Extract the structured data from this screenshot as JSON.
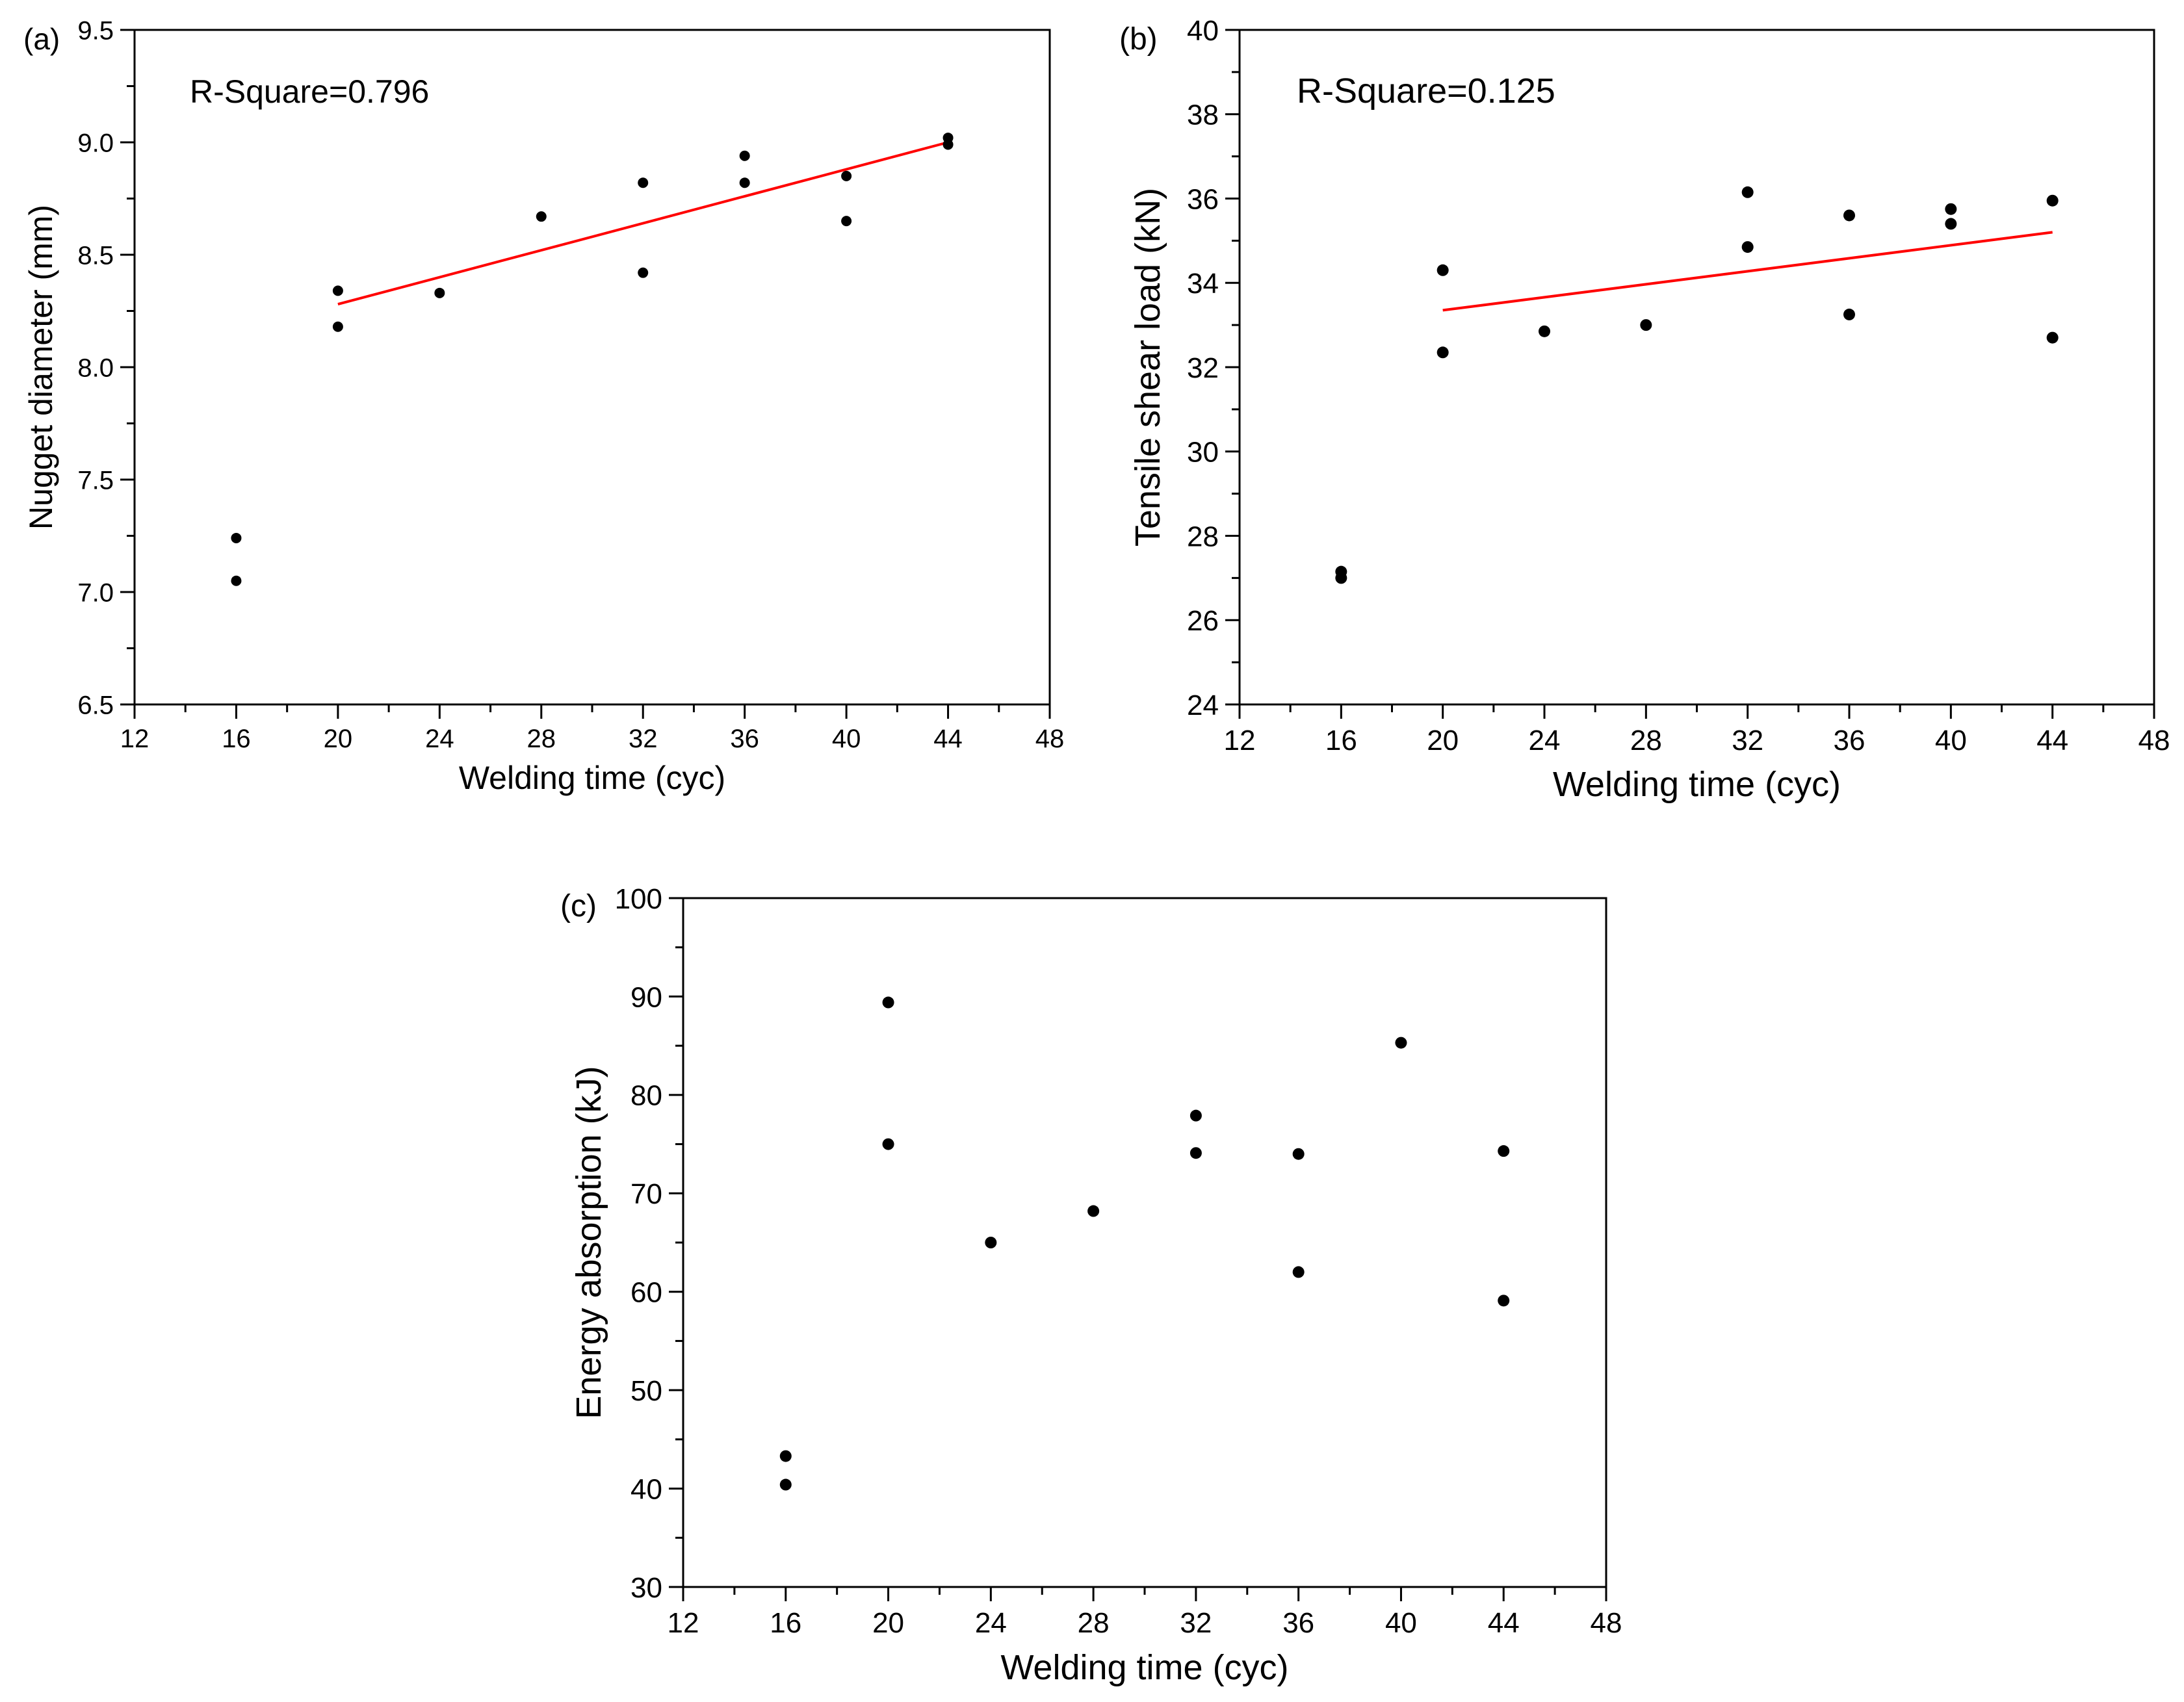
{
  "chart_data": [
    {
      "panel_label": "(a)",
      "type": "scatter",
      "xlabel": "Welding time (cyc)",
      "ylabel": "Nugget diameter (mm)",
      "xlim": [
        12,
        48
      ],
      "ylim": [
        6.5,
        9.5
      ],
      "xticks": [
        "12",
        "16",
        "20",
        "24",
        "28",
        "32",
        "36",
        "40",
        "44",
        "48"
      ],
      "yticks": [
        "6.5",
        "7.0",
        "7.5",
        "8.0",
        "8.5",
        "9.0",
        "9.5"
      ],
      "annotation": "R-Square=0.796",
      "points": [
        {
          "x": 16,
          "y": 7.24
        },
        {
          "x": 16,
          "y": 7.05
        },
        {
          "x": 20,
          "y": 8.34
        },
        {
          "x": 20,
          "y": 8.18
        },
        {
          "x": 24,
          "y": 8.33
        },
        {
          "x": 28,
          "y": 8.67
        },
        {
          "x": 32,
          "y": 8.82
        },
        {
          "x": 32,
          "y": 8.42
        },
        {
          "x": 36,
          "y": 8.94
        },
        {
          "x": 36,
          "y": 8.82
        },
        {
          "x": 40,
          "y": 8.85
        },
        {
          "x": 40,
          "y": 8.65
        },
        {
          "x": 44,
          "y": 9.02
        },
        {
          "x": 44,
          "y": 8.99
        }
      ],
      "fit_line": {
        "color": "#ff0000",
        "x": [
          20,
          44
        ],
        "y": [
          8.28,
          9.0
        ]
      }
    },
    {
      "panel_label": "(b)",
      "type": "scatter",
      "xlabel": "Welding time (cyc)",
      "ylabel": "Tensile shear load (kN)",
      "xlim": [
        12,
        48
      ],
      "ylim": [
        24,
        40
      ],
      "xticks": [
        "12",
        "16",
        "20",
        "24",
        "28",
        "32",
        "36",
        "40",
        "44",
        "48"
      ],
      "yticks": [
        "24",
        "26",
        "28",
        "30",
        "32",
        "34",
        "36",
        "38",
        "40"
      ],
      "annotation": "R-Square=0.125",
      "points": [
        {
          "x": 16,
          "y": 27.15
        },
        {
          "x": 16,
          "y": 27.0
        },
        {
          "x": 20,
          "y": 34.3
        },
        {
          "x": 20,
          "y": 32.35
        },
        {
          "x": 24,
          "y": 32.85
        },
        {
          "x": 28,
          "y": 33.0
        },
        {
          "x": 32,
          "y": 36.15
        },
        {
          "x": 32,
          "y": 34.85
        },
        {
          "x": 36,
          "y": 35.6
        },
        {
          "x": 36,
          "y": 33.25
        },
        {
          "x": 40,
          "y": 35.75
        },
        {
          "x": 40,
          "y": 35.4
        },
        {
          "x": 44,
          "y": 35.95
        },
        {
          "x": 44,
          "y": 32.7
        }
      ],
      "fit_line": {
        "color": "#ff0000",
        "x": [
          20,
          44
        ],
        "y": [
          33.35,
          35.2
        ]
      }
    },
    {
      "panel_label": "(c)",
      "type": "scatter",
      "xlabel": "Welding time (cyc)",
      "ylabel": "Energy absorption (kJ)",
      "xlim": [
        12,
        48
      ],
      "ylim": [
        30,
        100
      ],
      "xticks": [
        "12",
        "16",
        "20",
        "24",
        "28",
        "32",
        "36",
        "40",
        "44",
        "48"
      ],
      "yticks": [
        "30",
        "40",
        "50",
        "60",
        "70",
        "80",
        "90",
        "100"
      ],
      "annotation": "",
      "points": [
        {
          "x": 16,
          "y": 43.3
        },
        {
          "x": 16,
          "y": 40.4
        },
        {
          "x": 20,
          "y": 89.4
        },
        {
          "x": 20,
          "y": 75.0
        },
        {
          "x": 24,
          "y": 65.0
        },
        {
          "x": 28,
          "y": 68.2
        },
        {
          "x": 32,
          "y": 77.9
        },
        {
          "x": 32,
          "y": 74.1
        },
        {
          "x": 36,
          "y": 74.0
        },
        {
          "x": 36,
          "y": 62.0
        },
        {
          "x": 40,
          "y": 85.3
        },
        {
          "x": 44,
          "y": 74.3
        },
        {
          "x": 44,
          "y": 59.1
        }
      ],
      "fit_line": null
    }
  ]
}
